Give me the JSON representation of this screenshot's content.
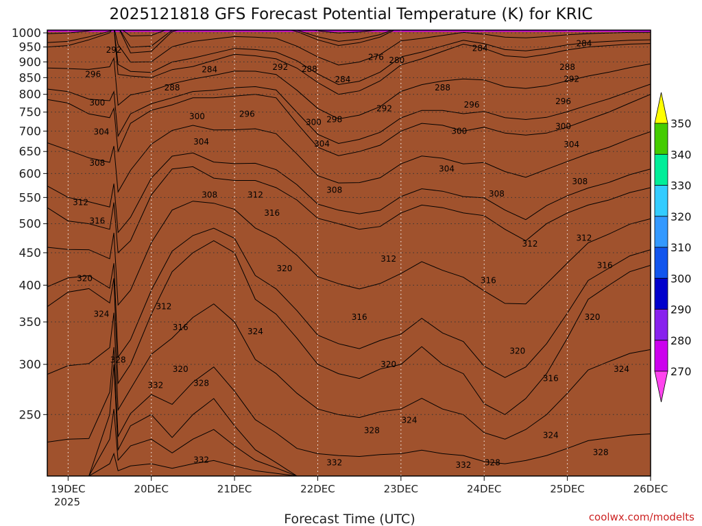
{
  "chart_data": {
    "type": "heatmap",
    "title": "2025121818 GFS Forecast Potential Temperature (K) for KRIC",
    "xlabel": "Forecast Time (UTC)",
    "ylabel": "",
    "x_ticks": [
      "19DEC",
      "20DEC",
      "21DEC",
      "22DEC",
      "23DEC",
      "24DEC",
      "25DEC",
      "26DEC"
    ],
    "x_sublabel": "2025",
    "x_range_days": [
      0.0,
      7.25
    ],
    "y_ticks": [
      1000,
      950,
      900,
      850,
      800,
      750,
      700,
      650,
      600,
      550,
      500,
      450,
      400,
      350,
      300,
      250
    ],
    "y_range_hpa": [
      1010,
      200
    ],
    "levels": [
      270,
      280,
      290,
      300,
      310,
      320,
      330,
      340,
      350
    ],
    "colorbar_labels": [
      "350",
      "340",
      "330",
      "320",
      "310",
      "300",
      "290",
      "280",
      "270"
    ],
    "colors": [
      "#ff44ee",
      "#cc00ee",
      "#8822ee",
      "#0000cc",
      "#1155ee",
      "#3399ff",
      "#33ccff",
      "#00ee99",
      "#44cc00",
      "#ffff00",
      "#ffaa00"
    ],
    "ground_color": "#a0522d",
    "profile_points_days": [
      0.0,
      0.25,
      0.5,
      0.75,
      0.8,
      0.85,
      1.0,
      1.25,
      1.5,
      1.75,
      2.0,
      2.25,
      2.5,
      2.75,
      3.0,
      3.25,
      3.5,
      3.75,
      4.0,
      4.25,
      4.5,
      4.75,
      5.0,
      5.25,
      5.5,
      5.75,
      6.0,
      6.25,
      6.5,
      6.75,
      7.0,
      7.25
    ],
    "series": [
      {
        "name": "270",
        "values": [
          1030,
          1030,
          1030,
          1030,
          1030,
          1030,
          1030,
          1030,
          1030,
          1030,
          1030,
          1030,
          1030,
          1030,
          1030,
          1030,
          1030,
          1030,
          1030,
          1030,
          1030,
          1030,
          1030,
          1030,
          1030,
          1030,
          1030,
          1030,
          1030,
          1030,
          1030,
          1030
        ]
      },
      {
        "name": "280",
        "values": [
          1030,
          1030,
          1030,
          1030,
          1030,
          1030,
          930,
          935,
          1005,
          1030,
          1030,
          1030,
          1030,
          1030,
          1005,
          975,
          955,
          965,
          985,
          1030,
          1030,
          1030,
          1030,
          1030,
          1030,
          1030,
          1030,
          1030,
          1030,
          1030,
          1030,
          1030
        ]
      },
      {
        "name": "290",
        "values": [
          950,
          955,
          975,
          1000,
          1030,
          860,
          855,
          850,
          875,
          885,
          905,
          925,
          920,
          910,
          880,
          835,
          800,
          810,
          840,
          890,
          910,
          935,
          960,
          945,
          920,
          915,
          925,
          940,
          950,
          955,
          960,
          962
        ]
      },
      {
        "name": "300",
        "values": [
          785,
          775,
          745,
          735,
          760,
          650,
          720,
          755,
          770,
          790,
          790,
          795,
          800,
          790,
          720,
          660,
          640,
          650,
          665,
          700,
          720,
          715,
          700,
          710,
          695,
          690,
          695,
          710,
          730,
          750,
          775,
          800
        ]
      },
      {
        "name": "310",
        "values": [
          530,
          505,
          500,
          490,
          540,
          450,
          470,
          555,
          610,
          615,
          590,
          585,
          585,
          570,
          545,
          510,
          500,
          490,
          495,
          520,
          535,
          530,
          520,
          515,
          490,
          470,
          500,
          520,
          535,
          545,
          560,
          570
        ]
      },
      {
        "name": "320",
        "values": [
          370,
          390,
          395,
          375,
          410,
          280,
          300,
          360,
          420,
          450,
          470,
          450,
          380,
          360,
          330,
          300,
          290,
          285,
          295,
          300,
          320,
          300,
          290,
          260,
          250,
          265,
          290,
          330,
          380,
          400,
          420,
          430
        ]
      },
      {
        "name": "330",
        "values": [
          200,
          200,
          200,
          250,
          300,
          220,
          240,
          250,
          230,
          250,
          265,
          240,
          220,
          210,
          200,
          200,
          200,
          200,
          200,
          200,
          200,
          200,
          200,
          200,
          200,
          200,
          200,
          200,
          200,
          200,
          200,
          200
        ]
      },
      {
        "name": "340",
        "values": [
          200,
          200,
          200,
          200,
          200,
          200,
          200,
          200,
          200,
          200,
          200,
          200,
          200,
          200,
          200,
          200,
          200,
          200,
          200,
          200,
          200,
          200,
          200,
          200,
          200,
          200,
          200,
          200,
          200,
          200,
          200,
          200
        ]
      },
      {
        "name": "350",
        "values": [
          200,
          200,
          200,
          200,
          200,
          200,
          200,
          200,
          200,
          200,
          200,
          200,
          200,
          200,
          200,
          200,
          200,
          200,
          200,
          200,
          200,
          200,
          200,
          200,
          200,
          200,
          200,
          200,
          200,
          200,
          200,
          200
        ]
      }
    ],
    "contour_labels": [
      {
        "text": "332",
        "day": 1.85,
        "hpa": 212
      },
      {
        "text": "332",
        "day": 3.45,
        "hpa": 210
      },
      {
        "text": "332",
        "day": 5.0,
        "hpa": 208
      },
      {
        "text": "328",
        "day": 5.35,
        "hpa": 210
      },
      {
        "text": "324",
        "day": 6.05,
        "hpa": 232
      },
      {
        "text": "328",
        "day": 6.65,
        "hpa": 218
      },
      {
        "text": "328",
        "day": 3.9,
        "hpa": 236
      },
      {
        "text": "324",
        "day": 4.35,
        "hpa": 245
      },
      {
        "text": "332",
        "day": 1.3,
        "hpa": 278
      },
      {
        "text": "328",
        "day": 1.85,
        "hpa": 280
      },
      {
        "text": "328",
        "day": 0.85,
        "hpa": 305
      },
      {
        "text": "320",
        "day": 1.6,
        "hpa": 295
      },
      {
        "text": "320",
        "day": 4.1,
        "hpa": 300
      },
      {
        "text": "320",
        "day": 5.65,
        "hpa": 315
      },
      {
        "text": "316",
        "day": 6.05,
        "hpa": 285
      },
      {
        "text": "324",
        "day": 6.9,
        "hpa": 295
      },
      {
        "text": "324",
        "day": 2.5,
        "hpa": 338
      },
      {
        "text": "316",
        "day": 1.6,
        "hpa": 343
      },
      {
        "text": "312",
        "day": 1.4,
        "hpa": 370
      },
      {
        "text": "324",
        "day": 0.65,
        "hpa": 360
      },
      {
        "text": "316",
        "day": 3.75,
        "hpa": 356
      },
      {
        "text": "320",
        "day": 6.55,
        "hpa": 356
      },
      {
        "text": "320",
        "day": 0.45,
        "hpa": 410
      },
      {
        "text": "316",
        "day": 5.3,
        "hpa": 407
      },
      {
        "text": "320",
        "day": 2.85,
        "hpa": 425
      },
      {
        "text": "316",
        "day": 6.7,
        "hpa": 430
      },
      {
        "text": "312",
        "day": 4.1,
        "hpa": 440
      },
      {
        "text": "312",
        "day": 5.8,
        "hpa": 465
      },
      {
        "text": "312",
        "day": 6.45,
        "hpa": 475
      },
      {
        "text": "316",
        "day": 0.6,
        "hpa": 505
      },
      {
        "text": "316",
        "day": 2.7,
        "hpa": 520
      },
      {
        "text": "312",
        "day": 0.4,
        "hpa": 540
      },
      {
        "text": "308",
        "day": 1.95,
        "hpa": 555
      },
      {
        "text": "312",
        "day": 2.5,
        "hpa": 555
      },
      {
        "text": "308",
        "day": 3.45,
        "hpa": 565
      },
      {
        "text": "308",
        "day": 5.4,
        "hpa": 557
      },
      {
        "text": "308",
        "day": 6.4,
        "hpa": 583
      },
      {
        "text": "308",
        "day": 0.6,
        "hpa": 623
      },
      {
        "text": "304",
        "day": 4.8,
        "hpa": 610
      },
      {
        "text": "304",
        "day": 1.85,
        "hpa": 673
      },
      {
        "text": "304",
        "day": 3.3,
        "hpa": 668
      },
      {
        "text": "304",
        "day": 6.3,
        "hpa": 667
      },
      {
        "text": "304",
        "day": 0.65,
        "hpa": 698
      },
      {
        "text": "300",
        "day": 4.95,
        "hpa": 700
      },
      {
        "text": "300",
        "day": 6.2,
        "hpa": 712
      },
      {
        "text": "300",
        "day": 3.2,
        "hpa": 723
      },
      {
        "text": "298",
        "day": 3.45,
        "hpa": 730
      },
      {
        "text": "300",
        "day": 1.8,
        "hpa": 738
      },
      {
        "text": "296",
        "day": 2.4,
        "hpa": 745
      },
      {
        "text": "292",
        "day": 4.05,
        "hpa": 760
      },
      {
        "text": "300",
        "day": 0.6,
        "hpa": 776
      },
      {
        "text": "296",
        "day": 5.1,
        "hpa": 770
      },
      {
        "text": "296",
        "day": 6.2,
        "hpa": 780
      },
      {
        "text": "288",
        "day": 1.5,
        "hpa": 820
      },
      {
        "text": "288",
        "day": 4.75,
        "hpa": 820
      },
      {
        "text": "284",
        "day": 3.55,
        "hpa": 844
      },
      {
        "text": "292",
        "day": 6.3,
        "hpa": 845
      },
      {
        "text": "284",
        "day": 1.95,
        "hpa": 875
      },
      {
        "text": "296",
        "day": 0.55,
        "hpa": 860
      },
      {
        "text": "292",
        "day": 2.8,
        "hpa": 883
      },
      {
        "text": "288",
        "day": 3.15,
        "hpa": 877
      },
      {
        "text": "288",
        "day": 6.25,
        "hpa": 883
      },
      {
        "text": "280",
        "day": 4.2,
        "hpa": 905
      },
      {
        "text": "276",
        "day": 3.95,
        "hpa": 916
      },
      {
        "text": "292",
        "day": 0.8,
        "hpa": 940
      },
      {
        "text": "284",
        "day": 5.2,
        "hpa": 945
      },
      {
        "text": "284",
        "day": 6.45,
        "hpa": 962
      }
    ]
  },
  "branding": {
    "credit": "coolwx.com/modelts"
  }
}
